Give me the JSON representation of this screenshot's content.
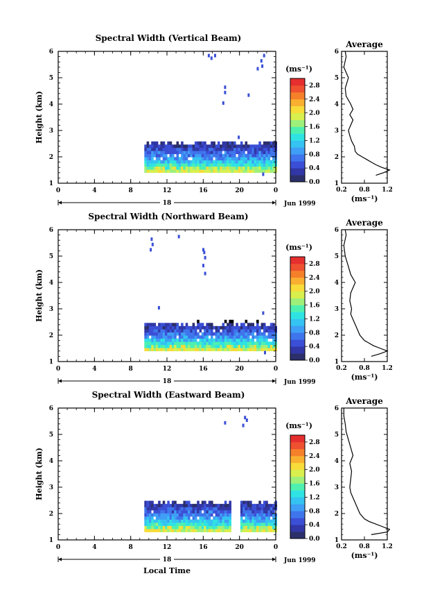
{
  "figure": {
    "xlabel": "Local Time",
    "date_label": "Jun 1999",
    "day_label": "18",
    "colorbar_label": "(ms⁻¹)",
    "avg_title": "Average",
    "avg_xlabel": "(ms⁻¹)",
    "ylabel": "Height (km)"
  },
  "colors": {
    "colormap": [
      "#2b2f6a",
      "#3137a6",
      "#3b4fd6",
      "#3f75ec",
      "#3f9ef5",
      "#35c3f2",
      "#2fe3e3",
      "#4ef0b0",
      "#9ef07a",
      "#d8ef4e",
      "#f7dc3a",
      "#f9b030",
      "#f5802a",
      "#ee5030",
      "#e52e2e"
    ]
  },
  "chart_data": [
    {
      "type": "heatmap",
      "title": "Spectral Width (Vertical Beam)",
      "xlabel": "Local Time",
      "ylabel": "Height (km)",
      "xlim": [
        0,
        24
      ],
      "ylim": [
        1,
        6
      ],
      "x_ticks": [
        "0",
        "4",
        "8",
        "12",
        "16",
        "20",
        "0"
      ],
      "y_ticks": [
        "1",
        "2",
        "3",
        "4",
        "5",
        "6"
      ],
      "colorbar": {
        "label": "(ms⁻¹)",
        "min": 0.0,
        "max": 3.0,
        "ticks": [
          "0.0",
          "0.4",
          "0.8",
          "1.2",
          "1.6",
          "2.0",
          "2.4",
          "2.8"
        ]
      },
      "echo_region": {
        "t_start": 9.5,
        "t_end": 24,
        "h_bottom": 1.4,
        "h_top": 2.5,
        "gap": null
      },
      "sparse_points": [
        [
          16.5,
          5.8
        ],
        [
          16.8,
          5.7
        ],
        [
          17.2,
          5.8
        ],
        [
          18.3,
          4.6
        ],
        [
          18.3,
          4.4
        ],
        [
          18.1,
          4.0
        ],
        [
          20.9,
          4.3
        ],
        [
          21.9,
          5.3
        ],
        [
          22.3,
          5.6
        ],
        [
          22.6,
          5.8
        ],
        [
          22.4,
          5.4
        ],
        [
          22.5,
          1.3
        ],
        [
          19.8,
          2.7
        ]
      ],
      "average_profile": {
        "title": "Average",
        "xlabel": "(ms⁻¹)",
        "xlim": [
          0.2,
          1.2
        ],
        "x_ticks": [
          "0.2",
          "0.8",
          "1.2"
        ],
        "heights": [
          1.3,
          1.4,
          1.5,
          1.6,
          1.7,
          1.8,
          1.9,
          2.0,
          2.1,
          2.2,
          2.4,
          2.6,
          2.8,
          3.0,
          3.2,
          3.4,
          3.6,
          3.8,
          4.0,
          4.3,
          4.6,
          5.0,
          5.4,
          5.8,
          6.0
        ],
        "values": [
          0.95,
          1.12,
          1.25,
          1.08,
          0.95,
          0.85,
          0.75,
          0.65,
          0.55,
          0.5,
          0.48,
          0.42,
          0.38,
          0.35,
          0.4,
          0.45,
          0.38,
          0.45,
          0.4,
          0.3,
          0.28,
          0.35,
          0.25,
          0.3,
          0.28
        ]
      }
    },
    {
      "type": "heatmap",
      "title": "Spectral Width (Northward Beam)",
      "xlabel": "Local Time",
      "ylabel": "Height (km)",
      "xlim": [
        0,
        24
      ],
      "ylim": [
        1,
        6
      ],
      "x_ticks": [
        "0",
        "4",
        "8",
        "12",
        "16",
        "20",
        "0"
      ],
      "y_ticks": [
        "1",
        "2",
        "3",
        "4",
        "5",
        "6"
      ],
      "colorbar": {
        "label": "(ms⁻¹)",
        "min": 0.0,
        "max": 3.0,
        "ticks": [
          "0.0",
          "0.4",
          "0.8",
          "1.2",
          "1.6",
          "2.0",
          "2.4",
          "2.8"
        ]
      },
      "echo_region": {
        "t_start": 9.5,
        "t_end": 24,
        "h_bottom": 1.4,
        "h_top": 2.4,
        "gap": null
      },
      "sparse_points": [
        [
          10.2,
          5.6
        ],
        [
          10.3,
          5.4
        ],
        [
          10.1,
          5.2
        ],
        [
          13.2,
          5.7
        ],
        [
          15.9,
          5.2
        ],
        [
          16.0,
          5.1
        ],
        [
          16.1,
          4.9
        ],
        [
          15.9,
          4.6
        ],
        [
          16.1,
          4.3
        ],
        [
          11.0,
          3.0
        ],
        [
          22.5,
          2.8
        ],
        [
          22.7,
          1.3
        ]
      ],
      "average_profile": {
        "title": "Average",
        "xlabel": "(ms⁻¹)",
        "xlim": [
          0.2,
          1.2
        ],
        "x_ticks": [
          "0.2",
          "0.8",
          "1.2"
        ],
        "heights": [
          1.2,
          1.3,
          1.4,
          1.5,
          1.6,
          1.7,
          1.8,
          2.0,
          2.2,
          2.4,
          2.6,
          2.8,
          3.0,
          3.3,
          3.6,
          3.8,
          4.0,
          4.3,
          4.6,
          5.0,
          5.4,
          5.8,
          6.0
        ],
        "values": [
          0.85,
          1.05,
          1.2,
          1.05,
          0.9,
          0.8,
          0.7,
          0.6,
          0.55,
          0.5,
          0.45,
          0.4,
          0.42,
          0.38,
          0.4,
          0.45,
          0.5,
          0.4,
          0.35,
          0.28,
          0.25,
          0.3,
          0.28
        ]
      }
    },
    {
      "type": "heatmap",
      "title": "Spectral Width (Eastward Beam)",
      "xlabel": "Local Time",
      "ylabel": "Height (km)",
      "xlim": [
        0,
        24
      ],
      "ylim": [
        1,
        6
      ],
      "x_ticks": [
        "0",
        "4",
        "8",
        "12",
        "16",
        "20",
        "0"
      ],
      "y_ticks": [
        "1",
        "2",
        "3",
        "4",
        "5",
        "6"
      ],
      "colorbar": {
        "label": "(ms⁻¹)",
        "min": 0.0,
        "max": 3.0,
        "ticks": [
          "0.0",
          "0.4",
          "0.8",
          "1.2",
          "1.6",
          "2.0",
          "2.4",
          "2.8"
        ]
      },
      "echo_region": {
        "t_start": 9.5,
        "t_end": 24,
        "h_bottom": 1.3,
        "h_top": 2.4,
        "gap": [
          19.0,
          20.0
        ]
      },
      "sparse_points": [
        [
          18.3,
          5.4
        ],
        [
          20.5,
          5.6
        ],
        [
          20.7,
          5.5
        ],
        [
          20.3,
          5.3
        ]
      ],
      "average_profile": {
        "title": "Average",
        "xlabel": "(ms⁻¹)",
        "xlim": [
          0.2,
          1.2
        ],
        "x_ticks": [
          "0.2",
          "0.8",
          "1.2"
        ],
        "heights": [
          1.2,
          1.3,
          1.4,
          1.5,
          1.6,
          1.7,
          1.8,
          2.0,
          2.2,
          2.4,
          2.6,
          2.8,
          3.0,
          3.3,
          3.6,
          3.9,
          4.2,
          4.5,
          4.8,
          5.1,
          5.4,
          5.7,
          6.0
        ],
        "values": [
          0.85,
          1.2,
          1.25,
          1.1,
          0.95,
          0.8,
          0.7,
          0.6,
          0.55,
          0.5,
          0.45,
          0.4,
          0.38,
          0.4,
          0.42,
          0.38,
          0.45,
          0.4,
          0.35,
          0.3,
          0.28,
          0.25,
          0.25
        ]
      }
    }
  ]
}
